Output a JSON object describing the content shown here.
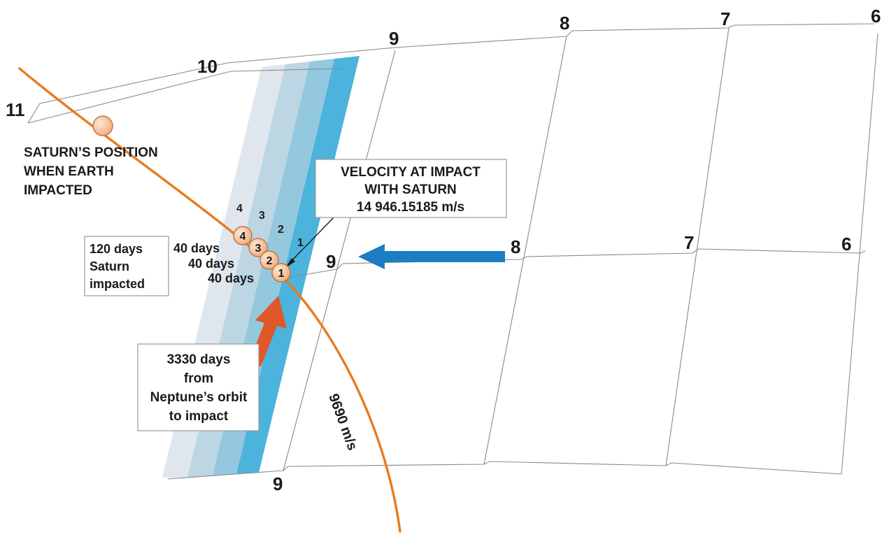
{
  "colors": {
    "orbit": "#e87b1e",
    "band_1": "#dfe6ee",
    "band_2": "#bcd6e3",
    "band_3": "#94c8de",
    "band_4": "#4cb3dc",
    "blue_arrow": "#1c7cc4",
    "red_arrow": "#e0572a",
    "planet_fill": "#f4c6a3",
    "planet_stroke": "#c4763c"
  },
  "grid_numbers": {
    "top": [
      "11",
      "10",
      "9",
      "8",
      "7",
      "6"
    ],
    "middle": [
      "9",
      "8",
      "7",
      "6"
    ],
    "bottom": [
      "9"
    ]
  },
  "band_numbers": [
    "4",
    "3",
    "2",
    "1"
  ],
  "ball_numbers": [
    "4",
    "3",
    "2",
    "1"
  ],
  "interval_labels": [
    "40 days",
    "40 days",
    "40 days"
  ],
  "saturn_position": {
    "lines": [
      "SATURN’S POSITION",
      "WHEN EARTH",
      "IMPACTED"
    ]
  },
  "velocity_box": {
    "lines": [
      "VELOCITY AT IMPACT",
      "WITH SATURN",
      "14 946.15185 m/s"
    ]
  },
  "saturn_box": {
    "lines": [
      "120 days",
      "Saturn",
      "impacted"
    ]
  },
  "travel_box": {
    "lines": [
      "3330 days",
      "from",
      "Neptune’s orbit",
      "to impact"
    ]
  },
  "orbit_speed_label": "9690 m/s"
}
